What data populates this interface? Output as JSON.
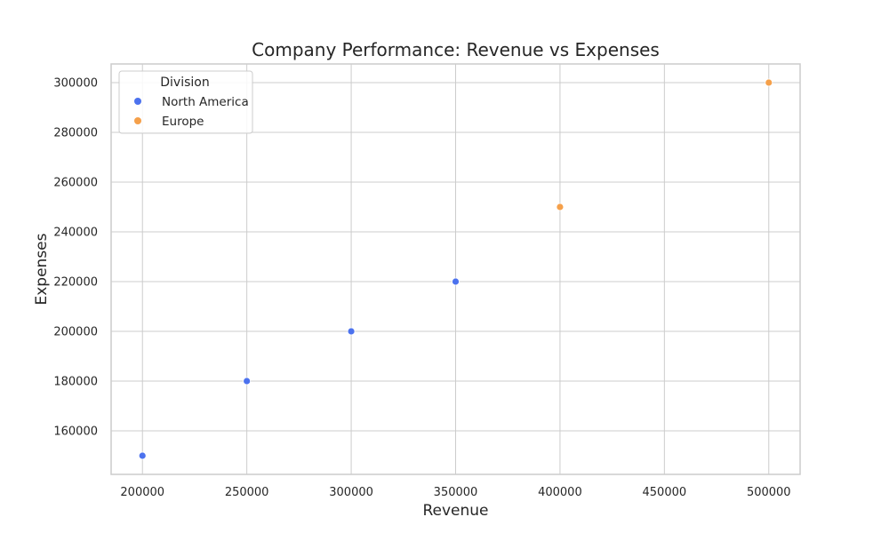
{
  "chart_data": {
    "type": "scatter",
    "title": "Company Performance: Revenue vs Expenses",
    "xlabel": "Revenue",
    "ylabel": "Expenses",
    "xlim": [
      185000,
      515000
    ],
    "ylim": [
      142500,
      307500
    ],
    "x_ticks": [
      200000,
      250000,
      300000,
      350000,
      400000,
      450000,
      500000
    ],
    "y_ticks": [
      160000,
      180000,
      200000,
      220000,
      240000,
      260000,
      280000,
      300000
    ],
    "grid": true,
    "legend": {
      "title": "Division",
      "placement": "top-left"
    },
    "series": [
      {
        "name": "North America",
        "color": "#4c72ee",
        "points": [
          {
            "x": 200000,
            "y": 150000
          },
          {
            "x": 250000,
            "y": 180000
          },
          {
            "x": 300000,
            "y": 200000
          },
          {
            "x": 350000,
            "y": 220000
          }
        ]
      },
      {
        "name": "Europe",
        "color": "#f5a04a",
        "points": [
          {
            "x": 400000,
            "y": 250000
          },
          {
            "x": 500000,
            "y": 300000
          }
        ]
      }
    ]
  }
}
